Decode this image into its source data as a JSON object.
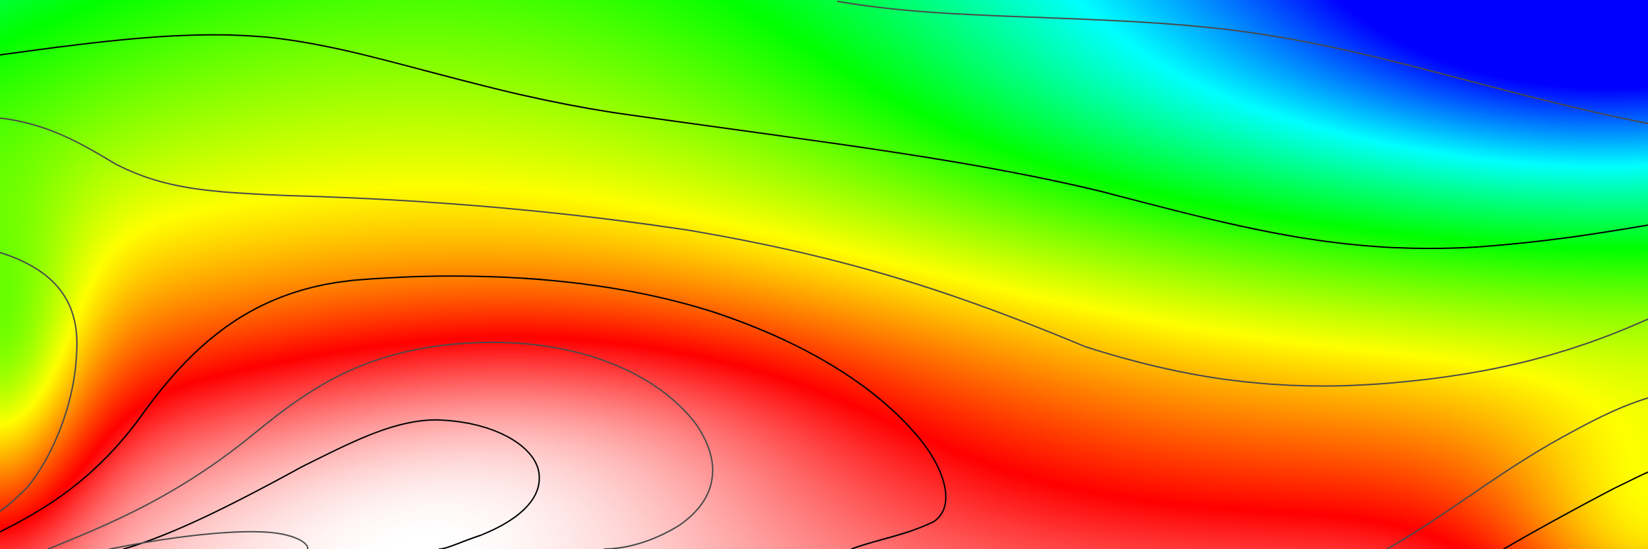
{
  "map": {
    "kind": "filled-contour-field",
    "colormap": [
      {
        "level": 0.0,
        "color": "#0000ff"
      },
      {
        "level": 0.18,
        "color": "#00ffff"
      },
      {
        "level": 0.36,
        "color": "#00ff00"
      },
      {
        "level": 0.56,
        "color": "#ffff00"
      },
      {
        "level": 0.78,
        "color": "#ff0000"
      },
      {
        "level": 1.0,
        "color": "#ffffff"
      }
    ],
    "contour_styles": {
      "major": "#000000",
      "minor": "#4a4a4a"
    },
    "labels_visible": false,
    "axes_visible": false,
    "legend_visible": false
  }
}
